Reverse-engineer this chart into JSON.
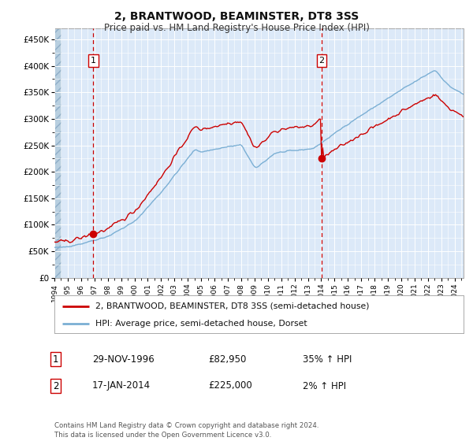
{
  "title": "2, BRANTWOOD, BEAMINSTER, DT8 3SS",
  "subtitle": "Price paid vs. HM Land Registry's House Price Index (HPI)",
  "legend_line1": "2, BRANTWOOD, BEAMINSTER, DT8 3SS (semi-detached house)",
  "legend_line2": "HPI: Average price, semi-detached house, Dorset",
  "sale1_date": "29-NOV-1996",
  "sale1_price": 82950,
  "sale1_price_str": "£82,950",
  "sale1_label": "35% ↑ HPI",
  "sale2_date": "17-JAN-2014",
  "sale2_price": 225000,
  "sale2_price_str": "£225,000",
  "sale2_label": "2% ↑ HPI",
  "footer": "Contains HM Land Registry data © Crown copyright and database right 2024.\nThis data is licensed under the Open Government Licence v3.0.",
  "ylim": [
    0,
    470000
  ],
  "yticks": [
    0,
    50000,
    100000,
    150000,
    200000,
    250000,
    300000,
    350000,
    400000,
    450000
  ],
  "ytick_labels": [
    "£0",
    "£50K",
    "£100K",
    "£150K",
    "£200K",
    "£250K",
    "£300K",
    "£350K",
    "£400K",
    "£450K"
  ],
  "background_color": "#dce9f8",
  "hatch_color": "#b8cfe0",
  "grid_color": "#ffffff",
  "red_line_color": "#cc0000",
  "blue_line_color": "#7bafd4",
  "marker_color": "#cc0000",
  "vline_color": "#cc0000",
  "sale1_year": 1996.91,
  "sale2_year": 2014.04,
  "xlim_start": 1994.0,
  "xlim_end": 2024.67
}
